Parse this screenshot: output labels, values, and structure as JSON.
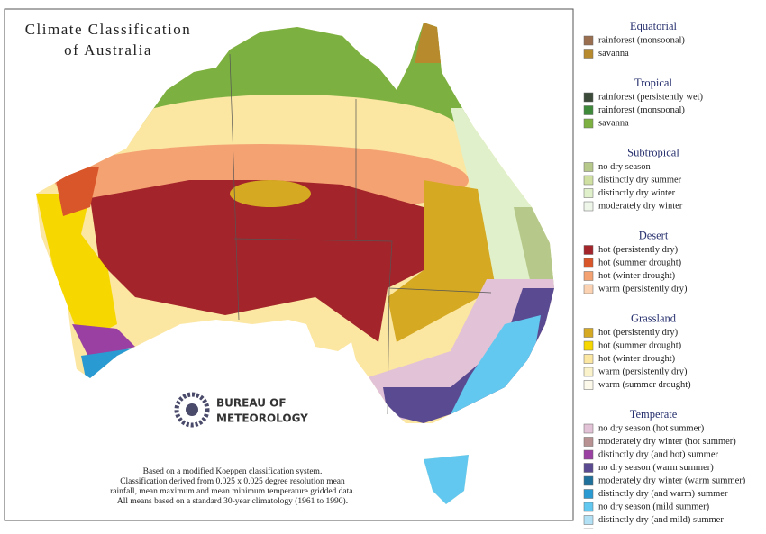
{
  "map": {
    "title": [
      "Climate Classification",
      "of Australia"
    ],
    "logo": [
      "Bureau of",
      "Meteorology"
    ],
    "footnote": [
      "Based on a modified Koeppen classification system.",
      "Classification derived from 0.025 x 0.025 degree resolution mean",
      "rainfall, mean maximum and mean minimum temperature gridded data.",
      "All means based on a standard 30-year climatology (1961 to 1990)."
    ]
  },
  "legend": [
    {
      "title": "Equatorial",
      "items": [
        {
          "label": "rainforest (monsoonal)",
          "color": "#9a6f50"
        },
        {
          "label": "savanna",
          "color": "#b88a2e"
        }
      ]
    },
    {
      "title": "Tropical",
      "items": [
        {
          "label": "rainforest (persistently wet)",
          "color": "#3c4a3a"
        },
        {
          "label": "rainforest (monsoonal)",
          "color": "#3f8a3a"
        },
        {
          "label": "savanna",
          "color": "#7cb142"
        }
      ]
    },
    {
      "title": "Subtropical",
      "items": [
        {
          "label": "no dry season",
          "color": "#b6c98a"
        },
        {
          "label": "distinctly dry summer",
          "color": "#cfe0a2"
        },
        {
          "label": "distinctly dry winter",
          "color": "#e0f0ca"
        },
        {
          "label": "moderately dry winter",
          "color": "#eef6ea"
        }
      ]
    },
    {
      "title": "Desert",
      "items": [
        {
          "label": "hot (persistently dry)",
          "color": "#a3242a"
        },
        {
          "label": "hot (summer drought)",
          "color": "#d9552a"
        },
        {
          "label": "hot (winter drought)",
          "color": "#f4a272"
        },
        {
          "label": "warm (persistently dry)",
          "color": "#fbd2b2"
        }
      ]
    },
    {
      "title": "Grassland",
      "items": [
        {
          "label": "hot (persistently dry)",
          "color": "#d5a922"
        },
        {
          "label": "hot (summer drought)",
          "color": "#f6d800"
        },
        {
          "label": "hot (winter drought)",
          "color": "#fbe6a2"
        },
        {
          "label": "warm (persistently dry)",
          "color": "#faf2ca"
        },
        {
          "label": "warm (summer drought)",
          "color": "#fcf9ea"
        }
      ]
    },
    {
      "title": "Temperate",
      "items": [
        {
          "label": "no dry season (hot summer)",
          "color": "#e2c2d6"
        },
        {
          "label": "moderately dry winter (hot summer)",
          "color": "#b89292"
        },
        {
          "label": "distinctly dry (and hot) summer",
          "color": "#9a40a2"
        },
        {
          "label": "no dry season (warm summer)",
          "color": "#5a4a92"
        },
        {
          "label": "moderately dry winter (warm summer)",
          "color": "#20709c"
        },
        {
          "label": "distinctly dry (and warm) summer",
          "color": "#2a9ad2"
        },
        {
          "label": "no dry season (mild summer)",
          "color": "#62c8f0"
        },
        {
          "label": "distinctly dry (and mild) summer",
          "color": "#b2e0f4"
        },
        {
          "label": "no dry season (cool summer)",
          "color": "#e2f4fc"
        }
      ]
    }
  ]
}
